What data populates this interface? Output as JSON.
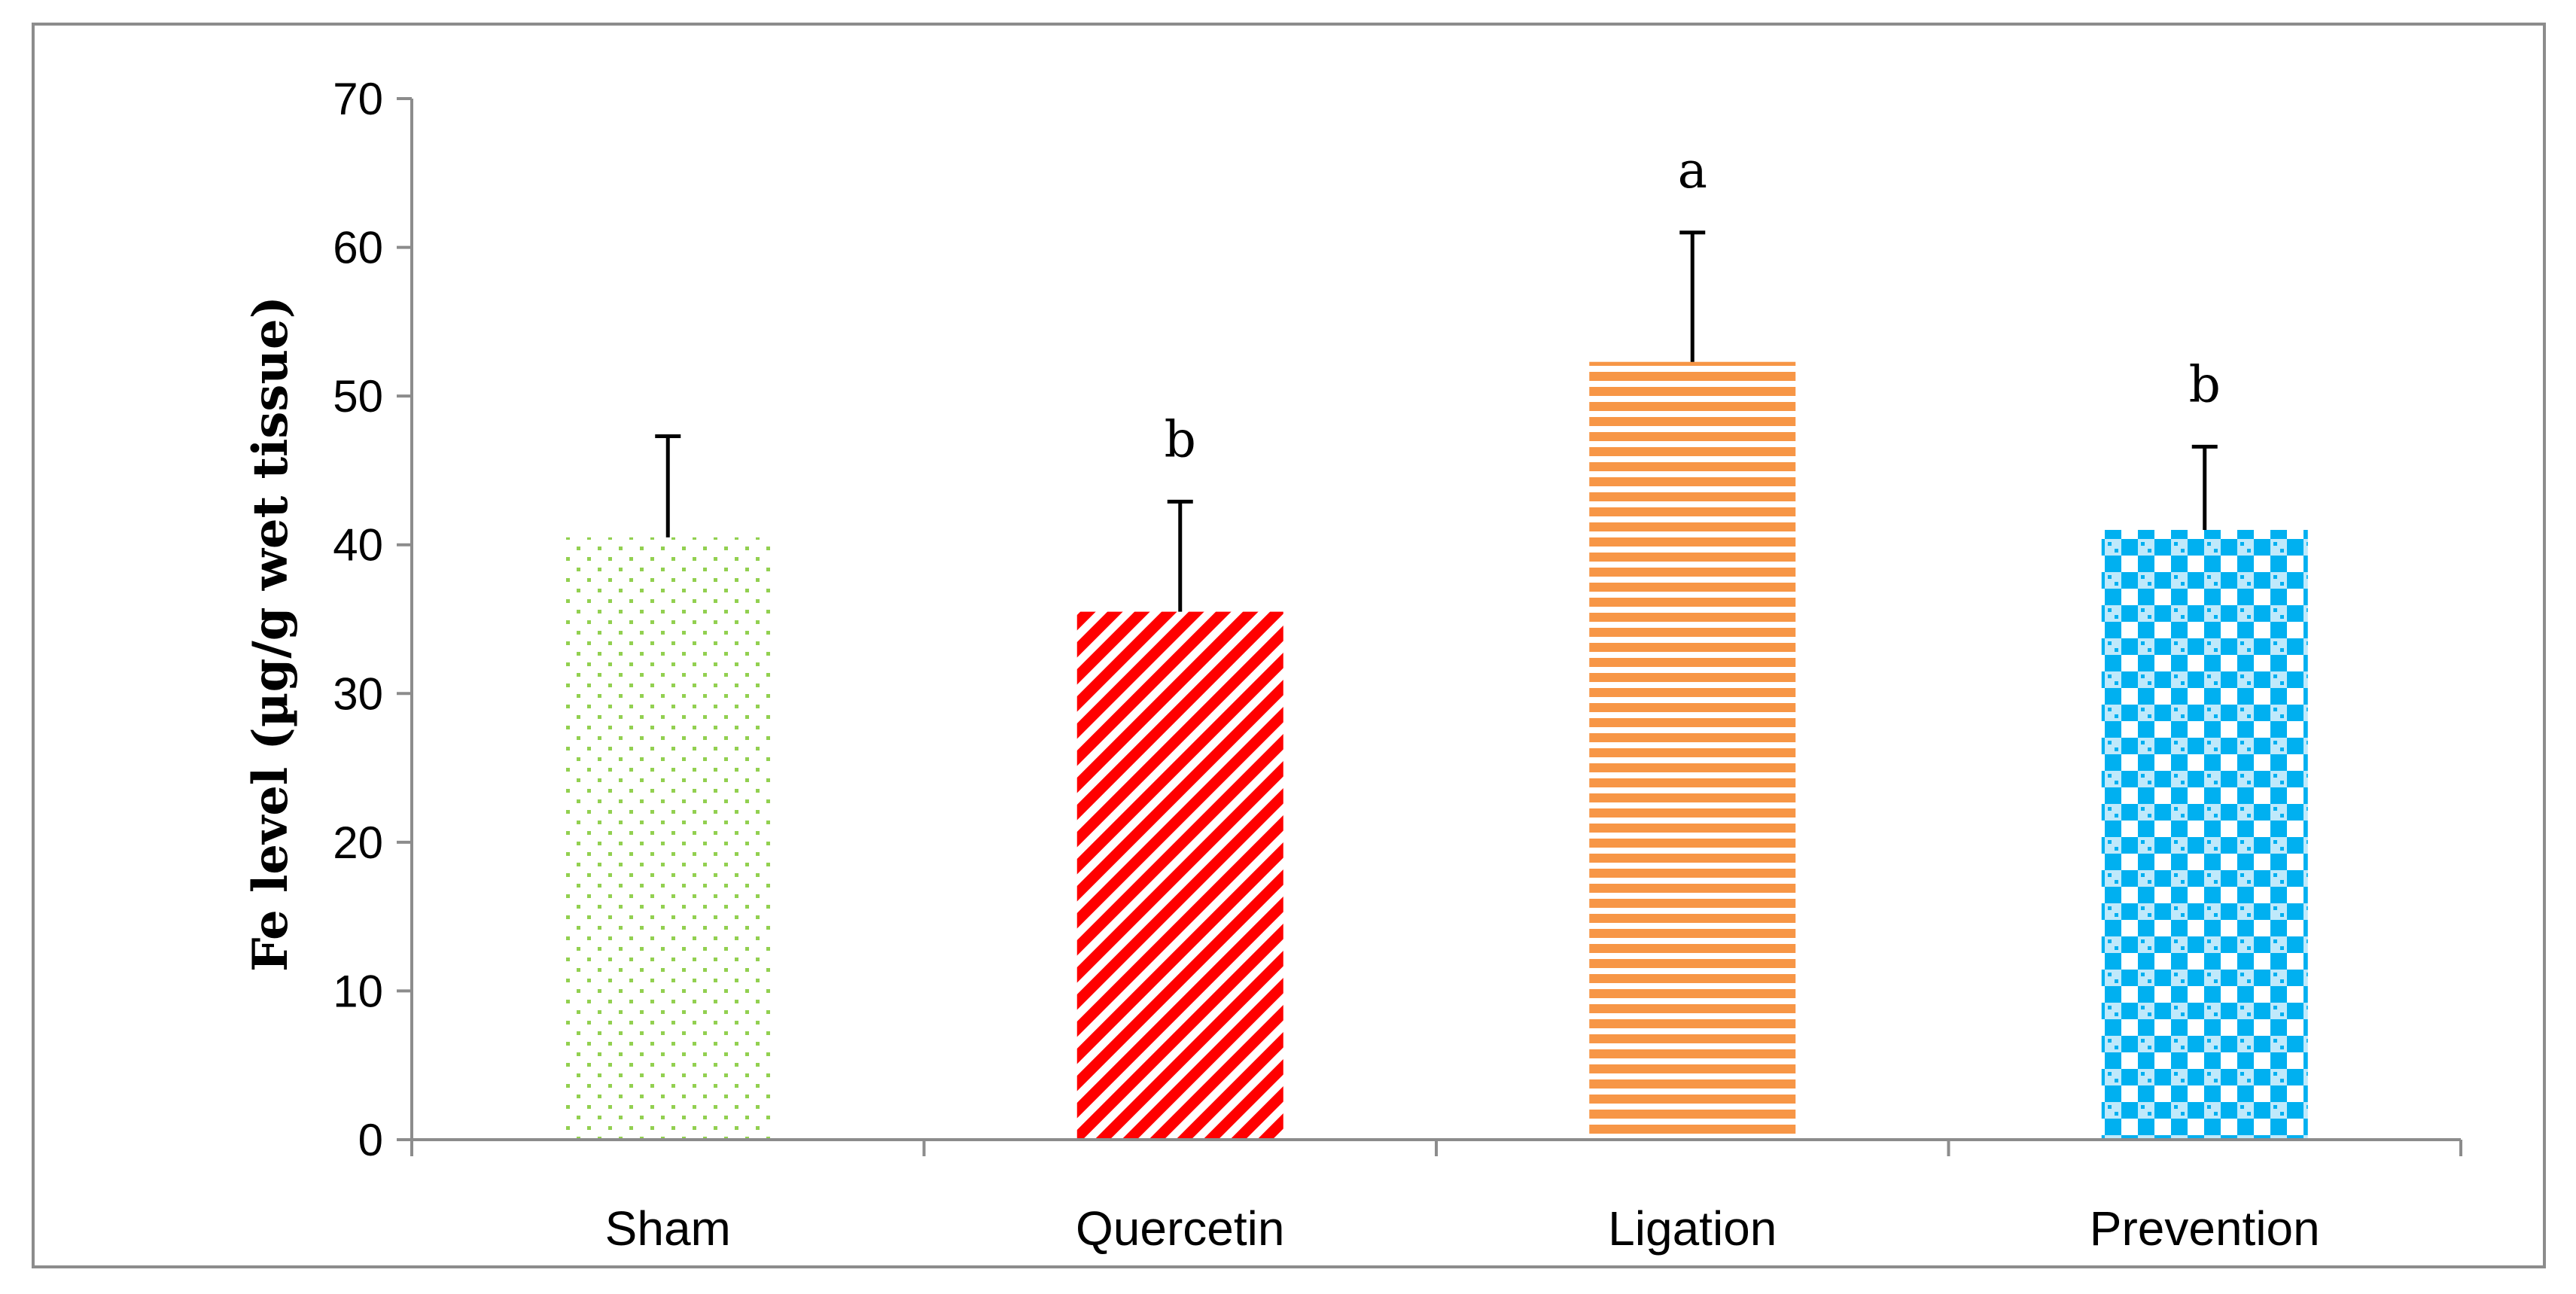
{
  "chart_data": {
    "type": "bar",
    "title": "",
    "xlabel": "",
    "ylabel": "Fe level (µg/g wet tissue)",
    "ylim": [
      0,
      70
    ],
    "yticks": [
      0,
      10,
      20,
      30,
      40,
      50,
      60,
      70
    ],
    "grid": false,
    "legend": "none",
    "categories": [
      "Sham",
      "Quercetin",
      "Ligation",
      "Prevention"
    ],
    "values": [
      40.5,
      35.5,
      52.3,
      41.0
    ],
    "error_upper": [
      6.8,
      7.4,
      8.7,
      5.6
    ],
    "significance": [
      "",
      "b",
      "a",
      "b"
    ],
    "bar_styles": [
      {
        "pattern": "dots",
        "color": "#92d050",
        "accent": "#ffffff"
      },
      {
        "pattern": "diagonal-stripes",
        "color": "#ff0000",
        "accent": "#ffffff"
      },
      {
        "pattern": "horizontal-stripes",
        "color": "#f79646",
        "accent": "#ffffff"
      },
      {
        "pattern": "checker",
        "color": "#00b0f0",
        "accent": "#ffffff"
      }
    ],
    "axis_color": "#8c8c8c",
    "error_bar_color": "#000000"
  }
}
